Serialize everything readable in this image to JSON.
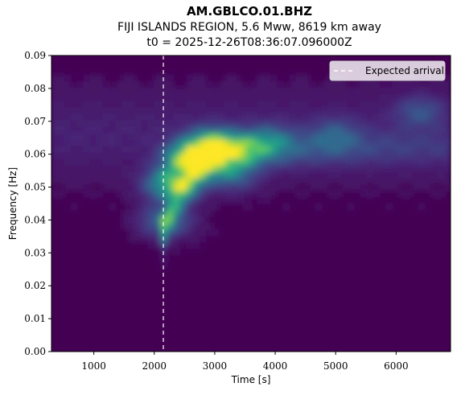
{
  "chart_data": {
    "type": "heatmap",
    "title": "AM.GBLCO.01.BHZ",
    "subtitle": "FIJI ISLANDS REGION, 5.6 Mww, 8619 km away",
    "subtitle2": "t0 = 2025-12-26T08:36:07.096000Z",
    "xlabel": "Time [s]",
    "ylabel": "Frequency [Hz]",
    "xlim": [
      300,
      6900
    ],
    "ylim": [
      0.0,
      0.09
    ],
    "x_ticks": [
      {
        "value": 1000,
        "label": "1000"
      },
      {
        "value": 2000,
        "label": "2000"
      },
      {
        "value": 3000,
        "label": "3000"
      },
      {
        "value": 4000,
        "label": "4000"
      },
      {
        "value": 5000,
        "label": "5000"
      },
      {
        "value": 6000,
        "label": "6000"
      }
    ],
    "y_ticks": [
      {
        "value": 0.0,
        "label": "0.00"
      },
      {
        "value": 0.01,
        "label": "0.01"
      },
      {
        "value": 0.02,
        "label": "0.02"
      },
      {
        "value": 0.03,
        "label": "0.03"
      },
      {
        "value": 0.04,
        "label": "0.04"
      },
      {
        "value": 0.05,
        "label": "0.05"
      },
      {
        "value": 0.06,
        "label": "0.06"
      },
      {
        "value": 0.07,
        "label": "0.07"
      },
      {
        "value": 0.08,
        "label": "0.08"
      },
      {
        "value": 0.09,
        "label": "0.09"
      }
    ],
    "colormap": "viridis",
    "expected_arrival": 2150,
    "legend": {
      "label": "Expected arrival",
      "placement": "upper-right"
    },
    "energy_peaks": [
      {
        "t": 2620,
        "f": 0.0585,
        "intensity": 1.0
      },
      {
        "t": 2950,
        "f": 0.0625,
        "intensity": 0.85
      },
      {
        "t": 2300,
        "f": 0.051,
        "intensity": 0.7
      },
      {
        "t": 3400,
        "f": 0.0615,
        "intensity": 0.45
      },
      {
        "t": 3900,
        "f": 0.064,
        "intensity": 0.3
      },
      {
        "t": 2200,
        "f": 0.04,
        "intensity": 0.35
      },
      {
        "t": 3300,
        "f": 0.054,
        "intensity": 0.3
      },
      {
        "t": 5000,
        "f": 0.066,
        "intensity": 0.2
      },
      {
        "t": 6400,
        "f": 0.073,
        "intensity": 0.2
      }
    ]
  },
  "colors": {
    "background_low": "#440154",
    "peak": "#fde725"
  }
}
